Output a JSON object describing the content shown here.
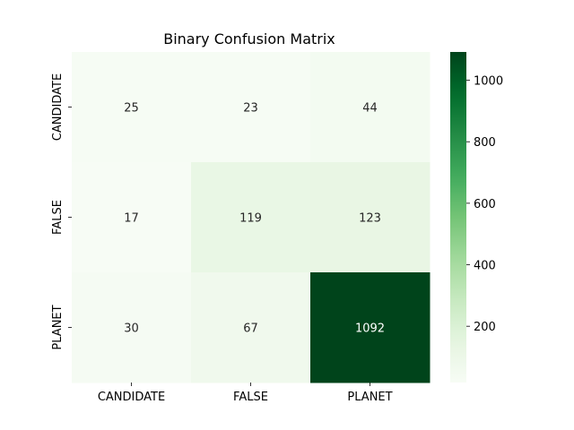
{
  "chart_data": {
    "type": "heatmap",
    "title": "Binary Confusion Matrix",
    "xlabel": "",
    "ylabel": "",
    "x_categories": [
      "CANDIDATE",
      "FALSE",
      "PLANET"
    ],
    "y_categories": [
      "CANDIDATE",
      "FALSE",
      "PLANET"
    ],
    "values": [
      [
        25,
        23,
        44
      ],
      [
        17,
        119,
        123
      ],
      [
        30,
        67,
        1092
      ]
    ],
    "colormap": "Greens",
    "vmin": 17,
    "vmax": 1092,
    "colorbar_ticks": [
      200,
      400,
      600,
      800,
      1000
    ],
    "grid": false,
    "colors": {
      "low": "#f7fcf5",
      "high": "#00441b",
      "text_dark": "#262626",
      "text_light": "#ffffff"
    }
  }
}
